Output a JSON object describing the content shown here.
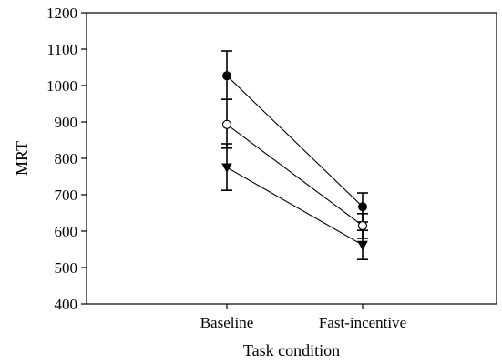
{
  "chart_data": {
    "type": "line",
    "xlabel": "Task condition",
    "ylabel": "MRT",
    "categories": [
      "Baseline",
      "Fast-incentive"
    ],
    "ylim": [
      400,
      1200
    ],
    "yticks": [
      400,
      500,
      600,
      700,
      800,
      900,
      1000,
      1100,
      1200
    ],
    "grid": false,
    "legend": "none",
    "series": [
      {
        "marker": "filled-circle",
        "values": [
          1027,
          667
        ],
        "error_low": [
          962,
          625
        ],
        "error_high": [
          1095,
          705
        ]
      },
      {
        "marker": "open-circle",
        "values": [
          893,
          615
        ],
        "error_low": [
          828,
          580
        ],
        "error_high": [
          962,
          648
        ]
      },
      {
        "marker": "filled-triangle-down",
        "values": [
          775,
          562
        ],
        "error_low": [
          712,
          522
        ],
        "error_high": [
          840,
          602
        ]
      }
    ]
  }
}
